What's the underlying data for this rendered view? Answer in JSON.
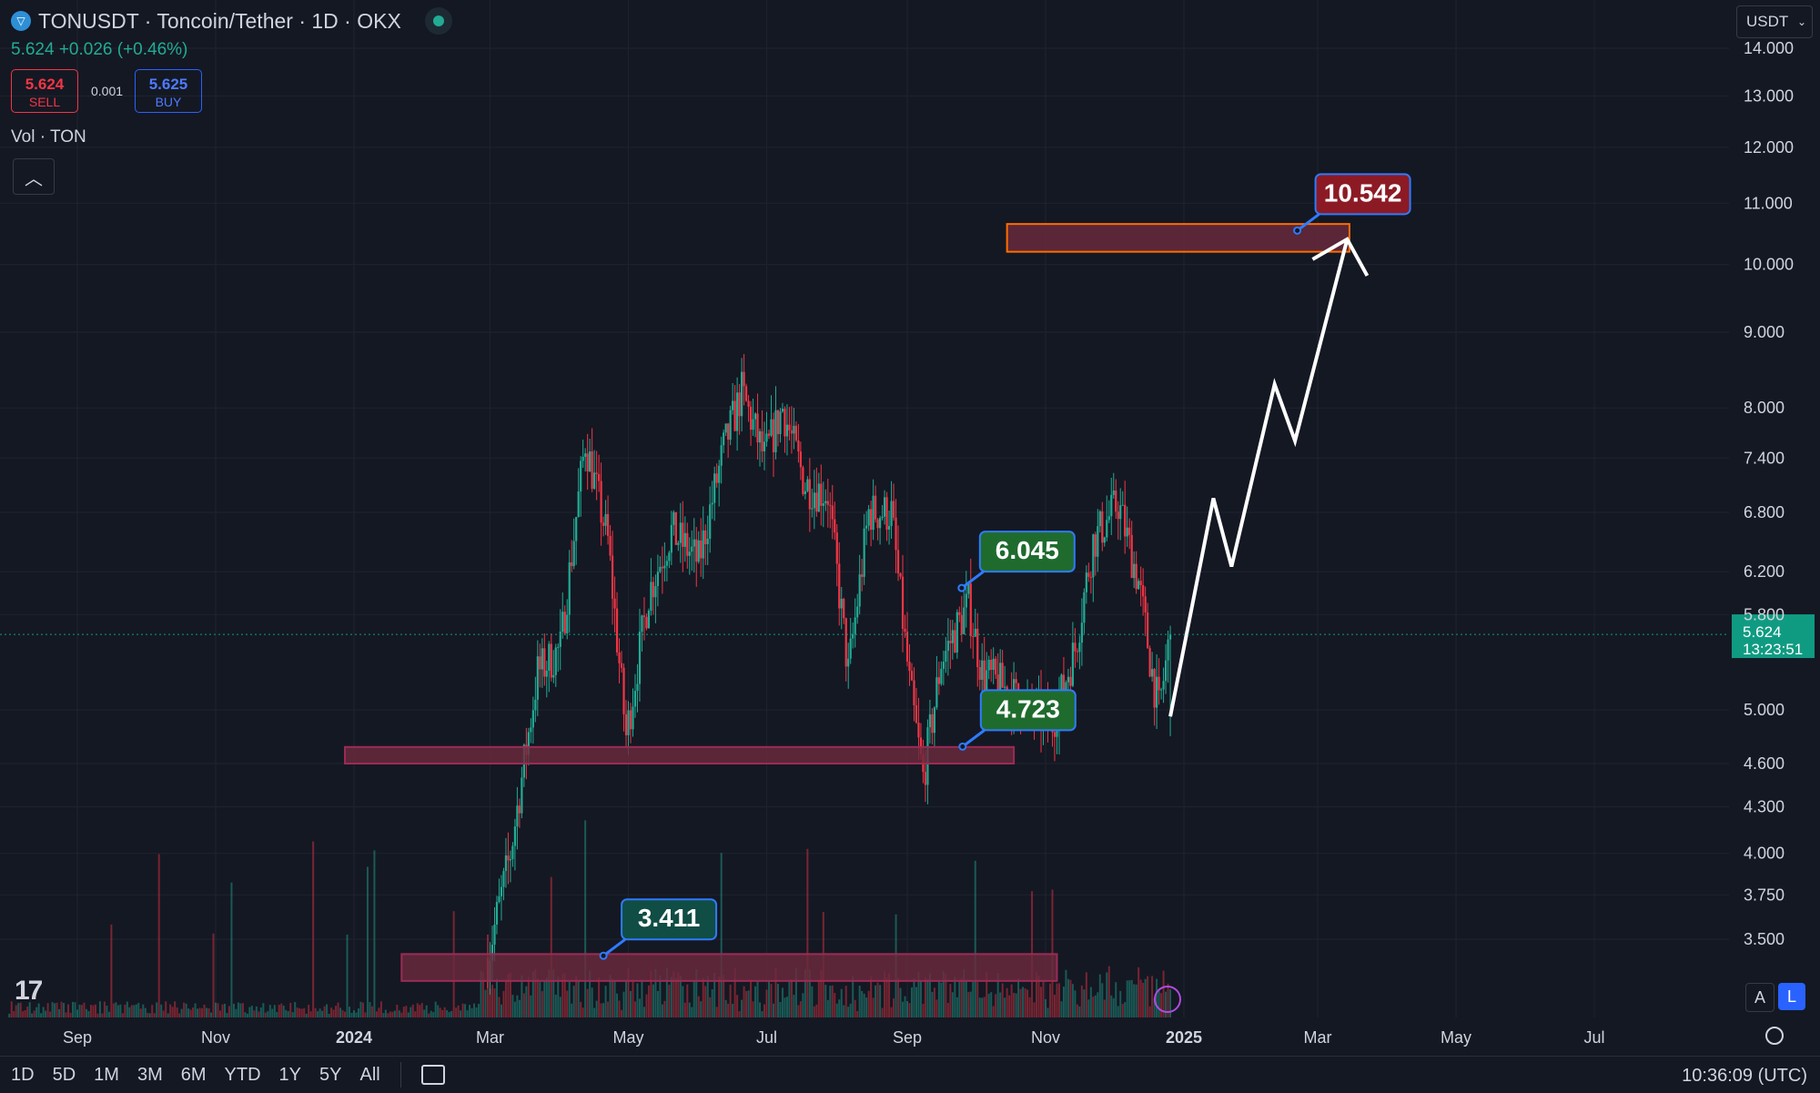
{
  "header": {
    "symbol_title": "TONUSDT · Toncoin/Tether · 1D · OKX",
    "last_price": "5.624",
    "change": "+0.026 (+0.46%)",
    "sell_price": "5.624",
    "sell_label": "SELL",
    "spread": "0.001",
    "buy_price": "5.625",
    "buy_label": "BUY",
    "volume_label": "Vol · TON",
    "currency": "USDT"
  },
  "bottom": {
    "ranges": [
      "1D",
      "5D",
      "1M",
      "3M",
      "6M",
      "YTD",
      "1Y",
      "5Y",
      "All"
    ],
    "clock": "10:36:09 (UTC)",
    "scale_auto": "A",
    "scale_log": "L"
  },
  "colors": {
    "up": "#22ab94",
    "down": "#f23645",
    "zone": "#6b2a3d",
    "label_green": "#1f6b2e",
    "label_teal": "#104d45",
    "label_red": "#8c1a24",
    "label_border": "#2f7bff",
    "current_price": "#0f9b82"
  },
  "chart_data": {
    "type": "candlestick",
    "scale": "log",
    "ylim": [
      3.2,
      14.0
    ],
    "y_ticks": [
      14.0,
      13.0,
      12.0,
      11.0,
      10.0,
      9.0,
      8.0,
      7.4,
      6.8,
      6.2,
      5.8,
      5.0,
      4.6,
      4.3,
      4.0,
      3.75,
      3.5
    ],
    "y_tick_labels": [
      "14.000",
      "13.000",
      "12.000",
      "11.000",
      "10.000",
      "9.000",
      "8.000",
      "7.400",
      "6.800",
      "6.200",
      "5.800",
      "5.000",
      "4.600",
      "4.300",
      "4.000",
      "3.750",
      "3.500"
    ],
    "x_ticks": [
      {
        "label": "Sep",
        "date": "2023-09-01"
      },
      {
        "label": "Nov",
        "date": "2023-11-01"
      },
      {
        "label": "2024",
        "date": "2024-01-01",
        "bold": true
      },
      {
        "label": "Mar",
        "date": "2024-03-01"
      },
      {
        "label": "May",
        "date": "2024-05-01"
      },
      {
        "label": "Jul",
        "date": "2024-07-01"
      },
      {
        "label": "Sep",
        "date": "2024-09-01"
      },
      {
        "label": "Nov",
        "date": "2024-11-01"
      },
      {
        "label": "2025",
        "date": "2025-01-01",
        "bold": true
      },
      {
        "label": "Mar",
        "date": "2025-03-01"
      },
      {
        "label": "May",
        "date": "2025-05-01"
      },
      {
        "label": "Jul",
        "date": "2025-07-01"
      }
    ],
    "price_path": [
      {
        "date": "2024-02-29",
        "price": 3.4
      },
      {
        "date": "2024-03-10",
        "price": 4.0
      },
      {
        "date": "2024-03-22",
        "price": 5.3
      },
      {
        "date": "2024-04-01",
        "price": 5.5
      },
      {
        "date": "2024-04-12",
        "price": 7.6
      },
      {
        "date": "2024-04-22",
        "price": 6.5
      },
      {
        "date": "2024-04-30",
        "price": 4.8
      },
      {
        "date": "2024-05-10",
        "price": 6.0
      },
      {
        "date": "2024-05-20",
        "price": 6.6
      },
      {
        "date": "2024-06-01",
        "price": 6.3
      },
      {
        "date": "2024-06-12",
        "price": 7.5
      },
      {
        "date": "2024-06-20",
        "price": 8.2
      },
      {
        "date": "2024-06-30",
        "price": 7.4
      },
      {
        "date": "2024-07-08",
        "price": 8.0
      },
      {
        "date": "2024-07-18",
        "price": 7.1
      },
      {
        "date": "2024-07-28",
        "price": 7.0
      },
      {
        "date": "2024-08-06",
        "price": 5.3
      },
      {
        "date": "2024-08-15",
        "price": 6.8
      },
      {
        "date": "2024-08-25",
        "price": 6.8
      },
      {
        "date": "2024-09-02",
        "price": 5.2
      },
      {
        "date": "2024-09-08",
        "price": 4.5
      },
      {
        "date": "2024-09-16",
        "price": 5.4
      },
      {
        "date": "2024-09-28",
        "price": 5.9
      },
      {
        "date": "2024-10-04",
        "price": 5.3
      },
      {
        "date": "2024-10-12",
        "price": 5.2
      },
      {
        "date": "2024-10-25",
        "price": 5.0
      },
      {
        "date": "2024-11-04",
        "price": 4.9
      },
      {
        "date": "2024-11-14",
        "price": 5.5
      },
      {
        "date": "2024-11-22",
        "price": 6.5
      },
      {
        "date": "2024-12-03",
        "price": 6.9
      },
      {
        "date": "2024-12-12",
        "price": 6.1
      },
      {
        "date": "2024-12-18",
        "price": 5.3
      },
      {
        "date": "2024-12-21",
        "price": 5.0
      },
      {
        "date": "2024-12-26",
        "price": 5.624
      }
    ],
    "current_price": {
      "value": 5.624,
      "label": "5.624",
      "countdown": "13:23:51"
    },
    "zones": [
      {
        "from": "2023-12-28",
        "to": "2024-10-18",
        "low": 4.6,
        "high": 4.72
      },
      {
        "from": "2024-01-22",
        "to": "2024-11-06",
        "low": 3.28,
        "high": 3.42
      },
      {
        "from": "2024-10-15",
        "to": "2025-03-15",
        "low": 10.2,
        "high": 10.65
      }
    ],
    "annotations": [
      {
        "text": "10.542",
        "date": "2025-02-20",
        "price": 10.542,
        "style": "red"
      },
      {
        "text": "6.045",
        "date": "2024-09-25",
        "price": 6.045,
        "style": "green"
      },
      {
        "text": "4.723",
        "date": "2024-09-25",
        "price": 4.723,
        "style": "green"
      },
      {
        "text": "3.411",
        "date": "2024-04-20",
        "price": 3.411,
        "style": "teal"
      }
    ],
    "projection": [
      {
        "date": "2024-12-26",
        "price": 4.95
      },
      {
        "date": "2025-01-14",
        "price": 6.95
      },
      {
        "date": "2025-01-22",
        "price": 6.25
      },
      {
        "date": "2025-02-10",
        "price": 8.3
      },
      {
        "date": "2025-02-19",
        "price": 7.6
      },
      {
        "date": "2025-03-14",
        "price": 10.4
      }
    ]
  }
}
